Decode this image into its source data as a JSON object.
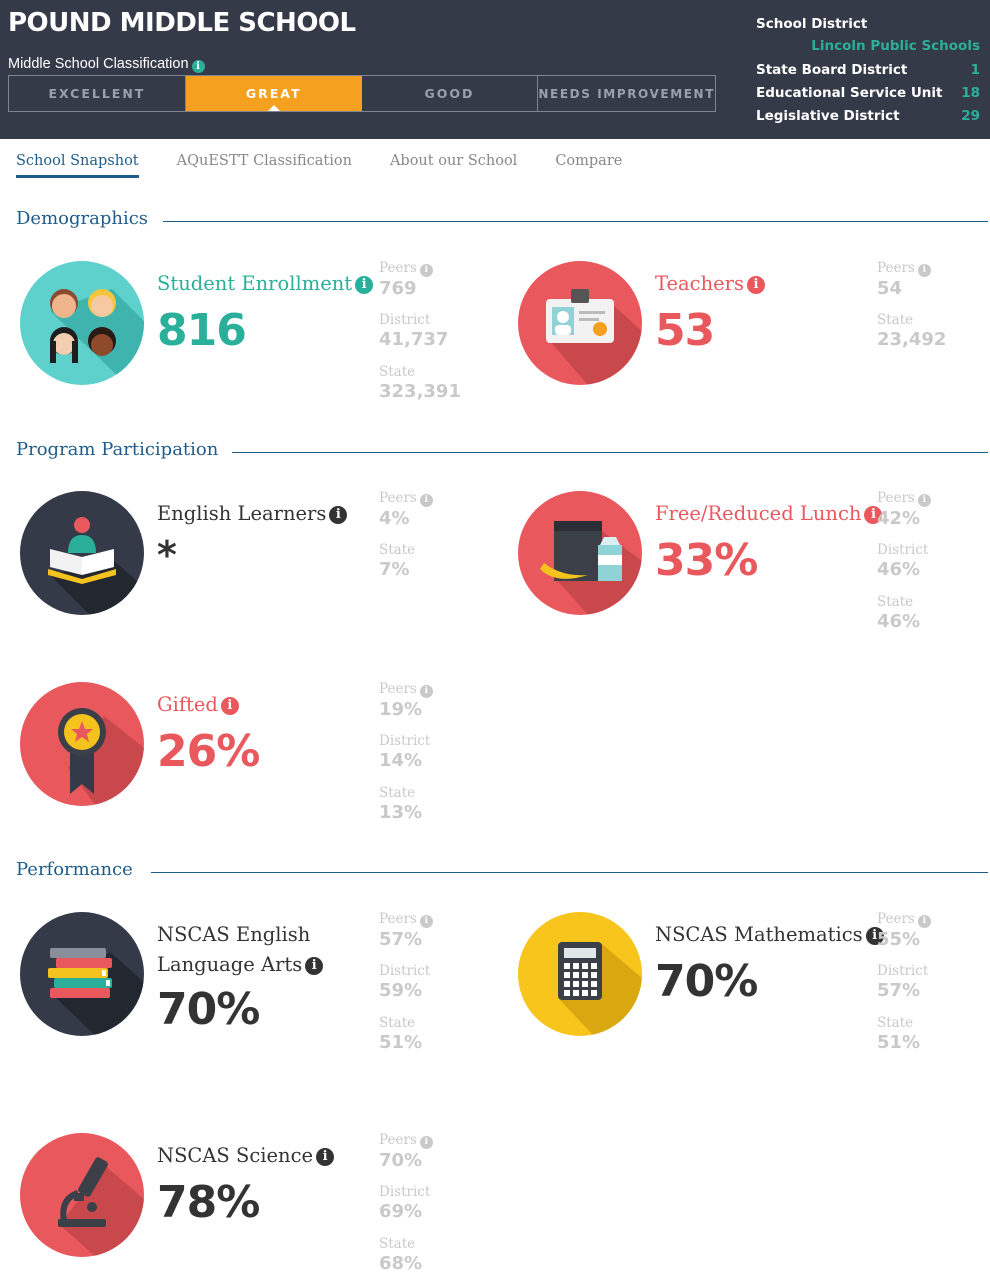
{
  "header": {
    "school_name": "POUND MIDDLE SCHOOL",
    "classification_label": "Middle School Classification",
    "classification_segments": [
      "EXCELLENT",
      "GREAT",
      "GOOD",
      "NEEDS IMPROVEMENT"
    ],
    "active_classification": "GREAT",
    "district": {
      "label": "School District",
      "name": "Lincoln Public Schools",
      "state_board_label": "State Board District",
      "state_board_value": "1",
      "esu_label": "Educational Service Unit",
      "esu_value": "18",
      "legislative_label": "Legislative District",
      "legislative_value": "29"
    }
  },
  "tabs": [
    "School Snapshot",
    "AQuESTT Classification",
    "About our School",
    "Compare"
  ],
  "active_tab": "School Snapshot",
  "sections": {
    "demographics": "Demographics",
    "program": "Program Participation",
    "performance": "Performance"
  },
  "labels": {
    "peers": "Peers",
    "district": "District",
    "state": "State"
  },
  "colors": {
    "header_bg": "#353a48",
    "teal": "#2ab09a",
    "red": "#e9585d",
    "orange": "#f5a01f",
    "navy": "#1f5c8a",
    "yellow": "#f7c51c"
  },
  "metrics": {
    "enrollment": {
      "label": "Student Enrollment",
      "value": "816",
      "peers": "769",
      "district": "41,737",
      "state": "323,391",
      "icon": "students-icon"
    },
    "teachers": {
      "label": "Teachers",
      "value": "53",
      "peers": "54",
      "state": "23,492",
      "icon": "id-badge-icon"
    },
    "english_learners": {
      "label": "English Learners",
      "value": "*",
      "peers": "4%",
      "state": "7%",
      "icon": "book-reader-icon"
    },
    "free_lunch": {
      "label": "Free/Reduced Lunch",
      "value": "33%",
      "peers": "42%",
      "district": "46%",
      "state": "46%",
      "icon": "lunch-bag-icon"
    },
    "gifted": {
      "label": "Gifted",
      "value": "26%",
      "peers": "19%",
      "district": "14%",
      "state": "13%",
      "icon": "award-ribbon-icon"
    },
    "ela": {
      "label_line1": "NSCAS English",
      "label_line2": "Language Arts",
      "value": "70%",
      "peers": "57%",
      "district": "59%",
      "state": "51%",
      "icon": "books-stack-icon"
    },
    "math": {
      "label": "NSCAS Mathematics",
      "value": "70%",
      "peers": "55%",
      "district": "57%",
      "state": "51%",
      "icon": "calculator-icon"
    },
    "science": {
      "label": "NSCAS Science",
      "value": "78%",
      "peers": "70%",
      "district": "69%",
      "state": "68%",
      "icon": "microscope-icon"
    }
  }
}
